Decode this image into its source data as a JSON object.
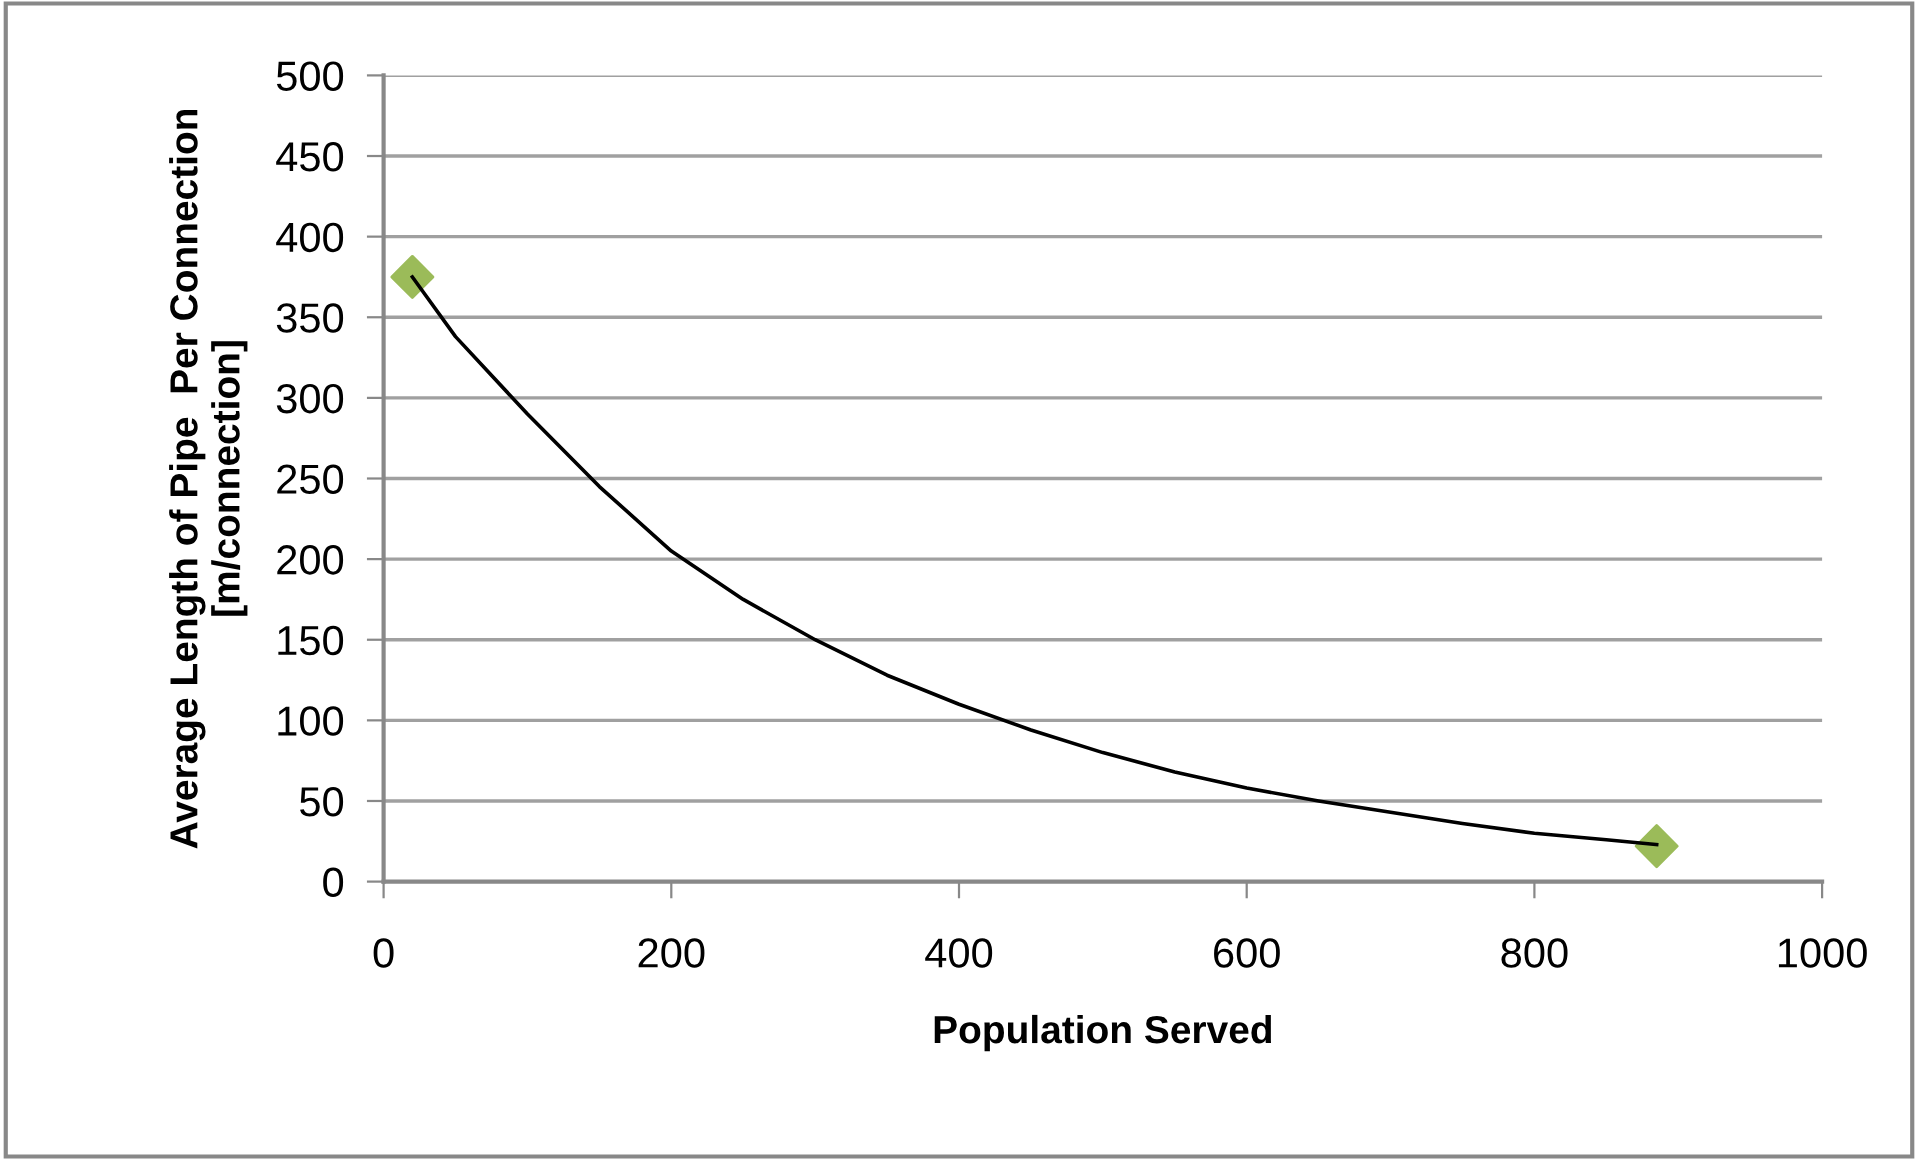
{
  "chart_data": {
    "type": "scatter",
    "xlabel": "Population Served",
    "ylabel": "Average Length of Pipe  Per Connection\n[m/connection]",
    "series": [
      {
        "color": "#9bbb59",
        "marker": "diamond",
        "x": [
          20,
          885
        ],
        "values": [
          375,
          22
        ]
      },
      {
        "type": "line",
        "color": "#000000",
        "marker": "none",
        "line_style": "solid",
        "x": [
          20,
          50,
          100,
          150,
          200,
          250,
          300,
          350,
          400,
          450,
          500,
          550,
          600,
          650,
          700,
          750,
          800,
          850,
          885
        ],
        "values": [
          375,
          338,
          290,
          245,
          205,
          175,
          150,
          128,
          110,
          94,
          80,
          68,
          58,
          50,
          43,
          36,
          30,
          26,
          23
        ]
      }
    ],
    "xlim": [
      0,
      1000
    ],
    "xticks": [
      0,
      200,
      400,
      600,
      800,
      1000
    ],
    "ylim": [
      0,
      500
    ],
    "yticks": [
      0,
      50,
      100,
      150,
      200,
      250,
      300,
      350,
      400,
      450,
      500
    ],
    "grid": "y",
    "legend": false
  }
}
